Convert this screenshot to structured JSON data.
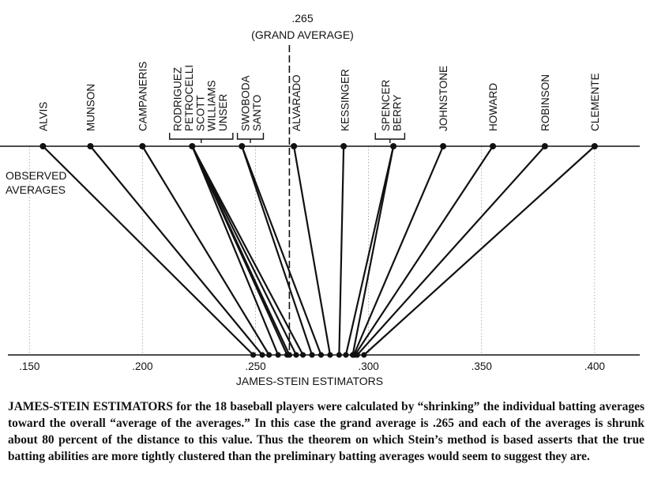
{
  "chart_data": {
    "type": "line",
    "title": "",
    "grand_average_value": ".265",
    "grand_average_label": "(GRAND AVERAGE)",
    "grand_average": 0.265,
    "observed_label": [
      "OBSERVED",
      "AVERAGES"
    ],
    "xlabel": "JAMES-STEIN ESTIMATORS",
    "xlim": [
      0.137,
      0.4245
    ],
    "ticks": [
      {
        "value": 0.15,
        "label": ".150"
      },
      {
        "value": 0.2,
        "label": ".200"
      },
      {
        "value": 0.25,
        "label": ".250"
      },
      {
        "value": 0.3,
        "label": ".300"
      },
      {
        "value": 0.35,
        "label": ".350"
      },
      {
        "value": 0.4,
        "label": ".400"
      }
    ],
    "grid": true,
    "labels": [
      {
        "text": "ALVIS",
        "at": 0.156
      },
      {
        "text": "MUNSON",
        "at": 0.177
      },
      {
        "text": "CAMPANERIS",
        "at": 0.2
      },
      {
        "text": "RODRIGUEZ",
        "at": 0.2155
      },
      {
        "text": "PETROCELLI",
        "at": 0.2205
      },
      {
        "text": "SCOTT",
        "at": 0.2255
      },
      {
        "text": "WILLIAMS",
        "at": 0.2305
      },
      {
        "text": "UNSER",
        "at": 0.2355
      },
      {
        "text": "SWOBODA",
        "at": 0.2455
      },
      {
        "text": "SANTO",
        "at": 0.2505
      },
      {
        "text": "ALVARADO",
        "at": 0.268
      },
      {
        "text": "KESSINGER",
        "at": 0.2895
      },
      {
        "text": "SPENCER",
        "at": 0.3075
      },
      {
        "text": "BERRY",
        "at": 0.3125
      },
      {
        "text": "JOHNSTONE",
        "at": 0.333
      },
      {
        "text": "HOWARD",
        "at": 0.355
      },
      {
        "text": "ROBINSON",
        "at": 0.378
      },
      {
        "text": "CLEMENTE",
        "at": 0.4
      }
    ],
    "brackets": [
      {
        "from": 0.212,
        "to": 0.24
      },
      {
        "from": 0.242,
        "to": 0.2535
      },
      {
        "from": 0.303,
        "to": 0.316
      }
    ],
    "observed": [
      0.156,
      0.177,
      0.2,
      0.222,
      0.222,
      0.222,
      0.222,
      0.222,
      0.244,
      0.244,
      0.267,
      0.289,
      0.311,
      0.311,
      0.333,
      0.355,
      0.378,
      0.4
    ],
    "estimated": [
      0.249,
      0.253,
      0.256,
      0.26,
      0.264,
      0.265,
      0.268,
      0.271,
      0.275,
      0.279,
      0.283,
      0.287,
      0.29,
      0.293,
      0.2935,
      0.294,
      0.295,
      0.298
    ]
  },
  "caption": "JAMES-STEIN ESTIMATORS for the 18 baseball players were calculated by “shrinking” the individual batting averages toward the overall “average of the averages.” In this case the grand average is .265 and each of the averages is shrunk about 80 percent of the distance to this value. Thus the theorem on which Stein’s method is based asserts that the true batting abilities are more tightly clustered than the preliminary batting averages would seem to suggest they are."
}
